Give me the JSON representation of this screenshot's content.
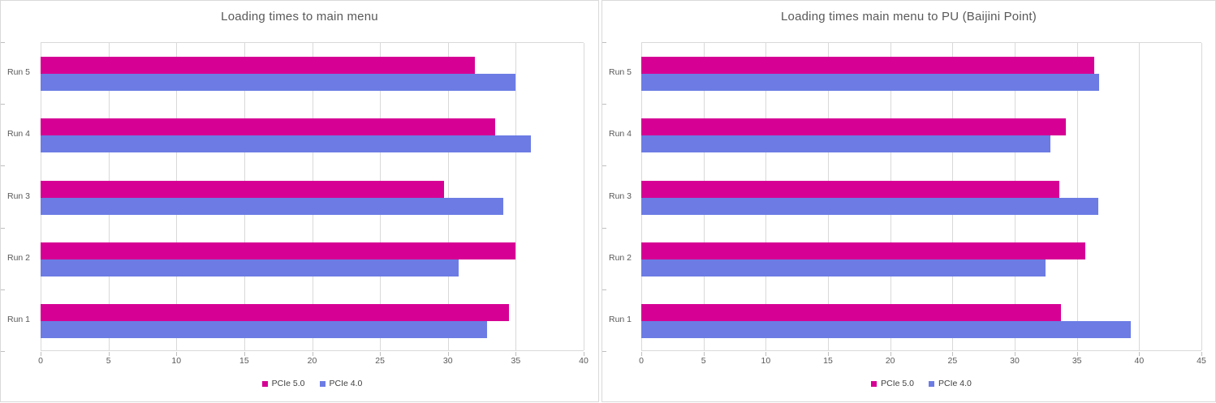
{
  "page": {
    "background": "#ffffff",
    "panel_border": "#d9d9d9",
    "gridline_color": "#d9d9d9",
    "axis_text_color": "#595959",
    "title_color": "#595959",
    "legend_text_color": "#404040"
  },
  "chart_data": [
    {
      "type": "bar",
      "orientation": "horizontal",
      "title": "Loading times to main menu",
      "categories": [
        "Run 1",
        "Run 2",
        "Run 3",
        "Run 4",
        "Run 5"
      ],
      "series": [
        {
          "name": "PCIe 5.0",
          "color": "#d60094",
          "values": [
            34.5,
            35.0,
            29.7,
            33.5,
            32.0
          ]
        },
        {
          "name": "PCIe 4.0",
          "color": "#6c7ce4",
          "values": [
            32.9,
            30.8,
            34.1,
            36.1,
            35.0
          ]
        }
      ],
      "xlim": [
        0,
        40
      ],
      "xticks": [
        0,
        5,
        10,
        15,
        20,
        25,
        30,
        35,
        40
      ],
      "grid": true,
      "legend_position": "bottom"
    },
    {
      "type": "bar",
      "orientation": "horizontal",
      "title": "Loading times main menu to PU (Baijini Point)",
      "categories": [
        "Run 1",
        "Run 2",
        "Run 3",
        "Run 4",
        "Run 5"
      ],
      "series": [
        {
          "name": "PCIe 5.0",
          "color": "#d60094",
          "values": [
            33.7,
            35.7,
            33.6,
            34.1,
            36.4
          ]
        },
        {
          "name": "PCIe 4.0",
          "color": "#6c7ce4",
          "values": [
            39.3,
            32.5,
            36.7,
            32.9,
            36.8
          ]
        }
      ],
      "xlim": [
        0,
        45
      ],
      "xticks": [
        0,
        5,
        10,
        15,
        20,
        25,
        30,
        35,
        40,
        45
      ],
      "grid": true,
      "legend_position": "bottom"
    }
  ]
}
